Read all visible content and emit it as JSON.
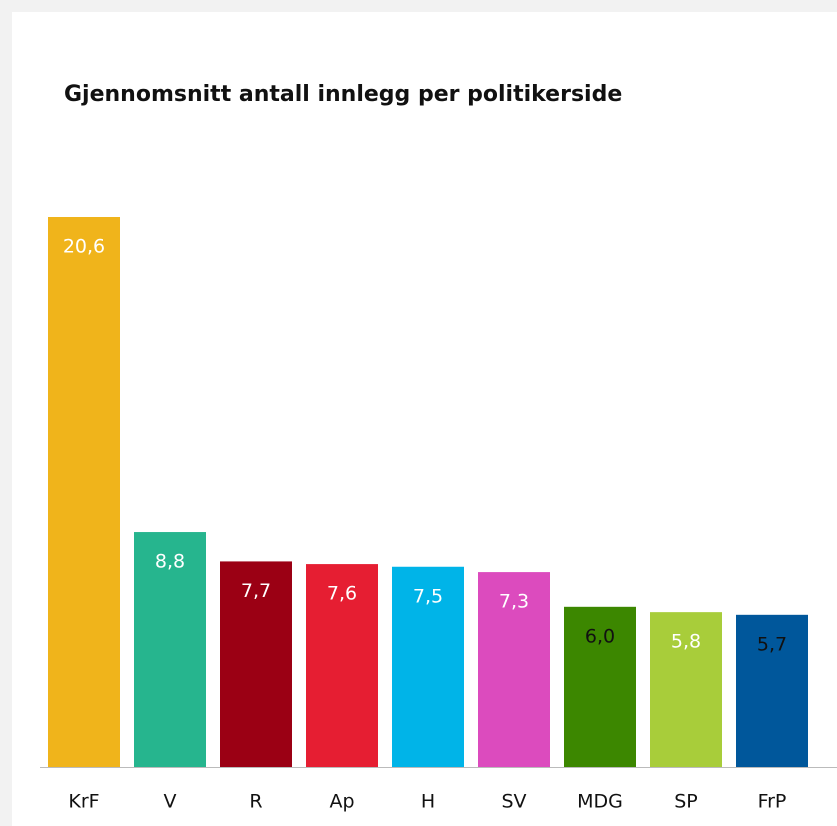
{
  "chart_data": {
    "type": "bar",
    "title": "Gjennomsnitt antall innlegg per politikerside",
    "categories": [
      "KrF",
      "V",
      "R",
      "Ap",
      "H",
      "SV",
      "MDG",
      "SP",
      "FrP"
    ],
    "values": [
      20.6,
      8.8,
      7.7,
      7.6,
      7.5,
      7.3,
      6.0,
      5.8,
      5.7
    ],
    "value_labels": [
      "20,6",
      "8,8",
      "7,7",
      "7,6",
      "7,5",
      "7,3",
      "6,0",
      "5,8",
      "5,7"
    ],
    "colors": [
      "#f0b41b",
      "#26b58e",
      "#9b0014",
      "#e61e32",
      "#00b4e8",
      "#dc4bbe",
      "#3c8700",
      "#a8cd3a",
      "#00579b"
    ],
    "label_colors": [
      "#ffffff",
      "#ffffff",
      "#ffffff",
      "#ffffff",
      "#ffffff",
      "#ffffff",
      "#111111",
      "#ffffff",
      "#111111"
    ]
  }
}
